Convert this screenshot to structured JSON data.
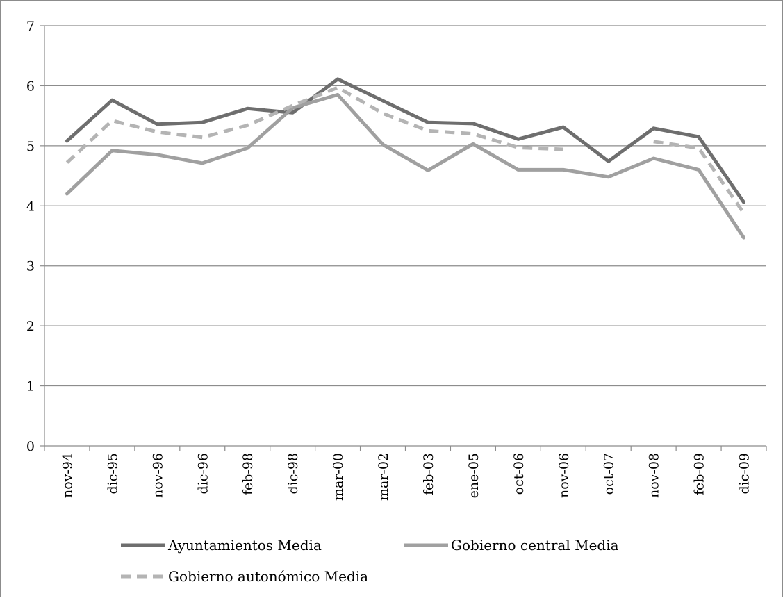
{
  "chart_data": {
    "type": "line",
    "title": "",
    "xlabel": "",
    "ylabel": "",
    "ylim": [
      0,
      7
    ],
    "yticks": [
      "0",
      "1",
      "2",
      "3",
      "4",
      "5",
      "6",
      "7"
    ],
    "grid": "horizontal",
    "legend_position": "bottom",
    "categories": [
      "nov-94",
      "dic-95",
      "nov-96",
      "dic-96",
      "feb-98",
      "dic-98",
      "mar-00",
      "mar-02",
      "feb-03",
      "ene-05",
      "oct-06",
      "nov-06",
      "oct-07",
      "nov-08",
      "feb-09",
      "dic-09"
    ],
    "series": [
      {
        "name": "Ayuntamientos Media",
        "color": "#6e6e6e",
        "dash": "solid",
        "values": [
          5.08,
          5.76,
          5.36,
          5.39,
          5.62,
          5.55,
          6.11,
          5.75,
          5.39,
          5.37,
          5.11,
          5.31,
          4.74,
          5.29,
          5.15,
          4.06
        ]
      },
      {
        "name": "Gobierno central Media",
        "color": "#a0a0a0",
        "dash": "solid",
        "values": [
          4.2,
          4.92,
          4.85,
          4.71,
          4.96,
          5.63,
          5.85,
          5.02,
          4.59,
          5.03,
          4.6,
          4.6,
          4.48,
          4.79,
          4.6,
          3.47
        ]
      },
      {
        "name": "Gobierno autonómico Media",
        "color": "#b4b4b4",
        "dash": "dashed",
        "values": [
          4.72,
          5.42,
          5.23,
          5.14,
          5.34,
          5.67,
          5.97,
          5.54,
          5.25,
          5.2,
          4.97,
          4.94,
          null,
          5.07,
          4.96,
          3.88
        ]
      }
    ]
  }
}
